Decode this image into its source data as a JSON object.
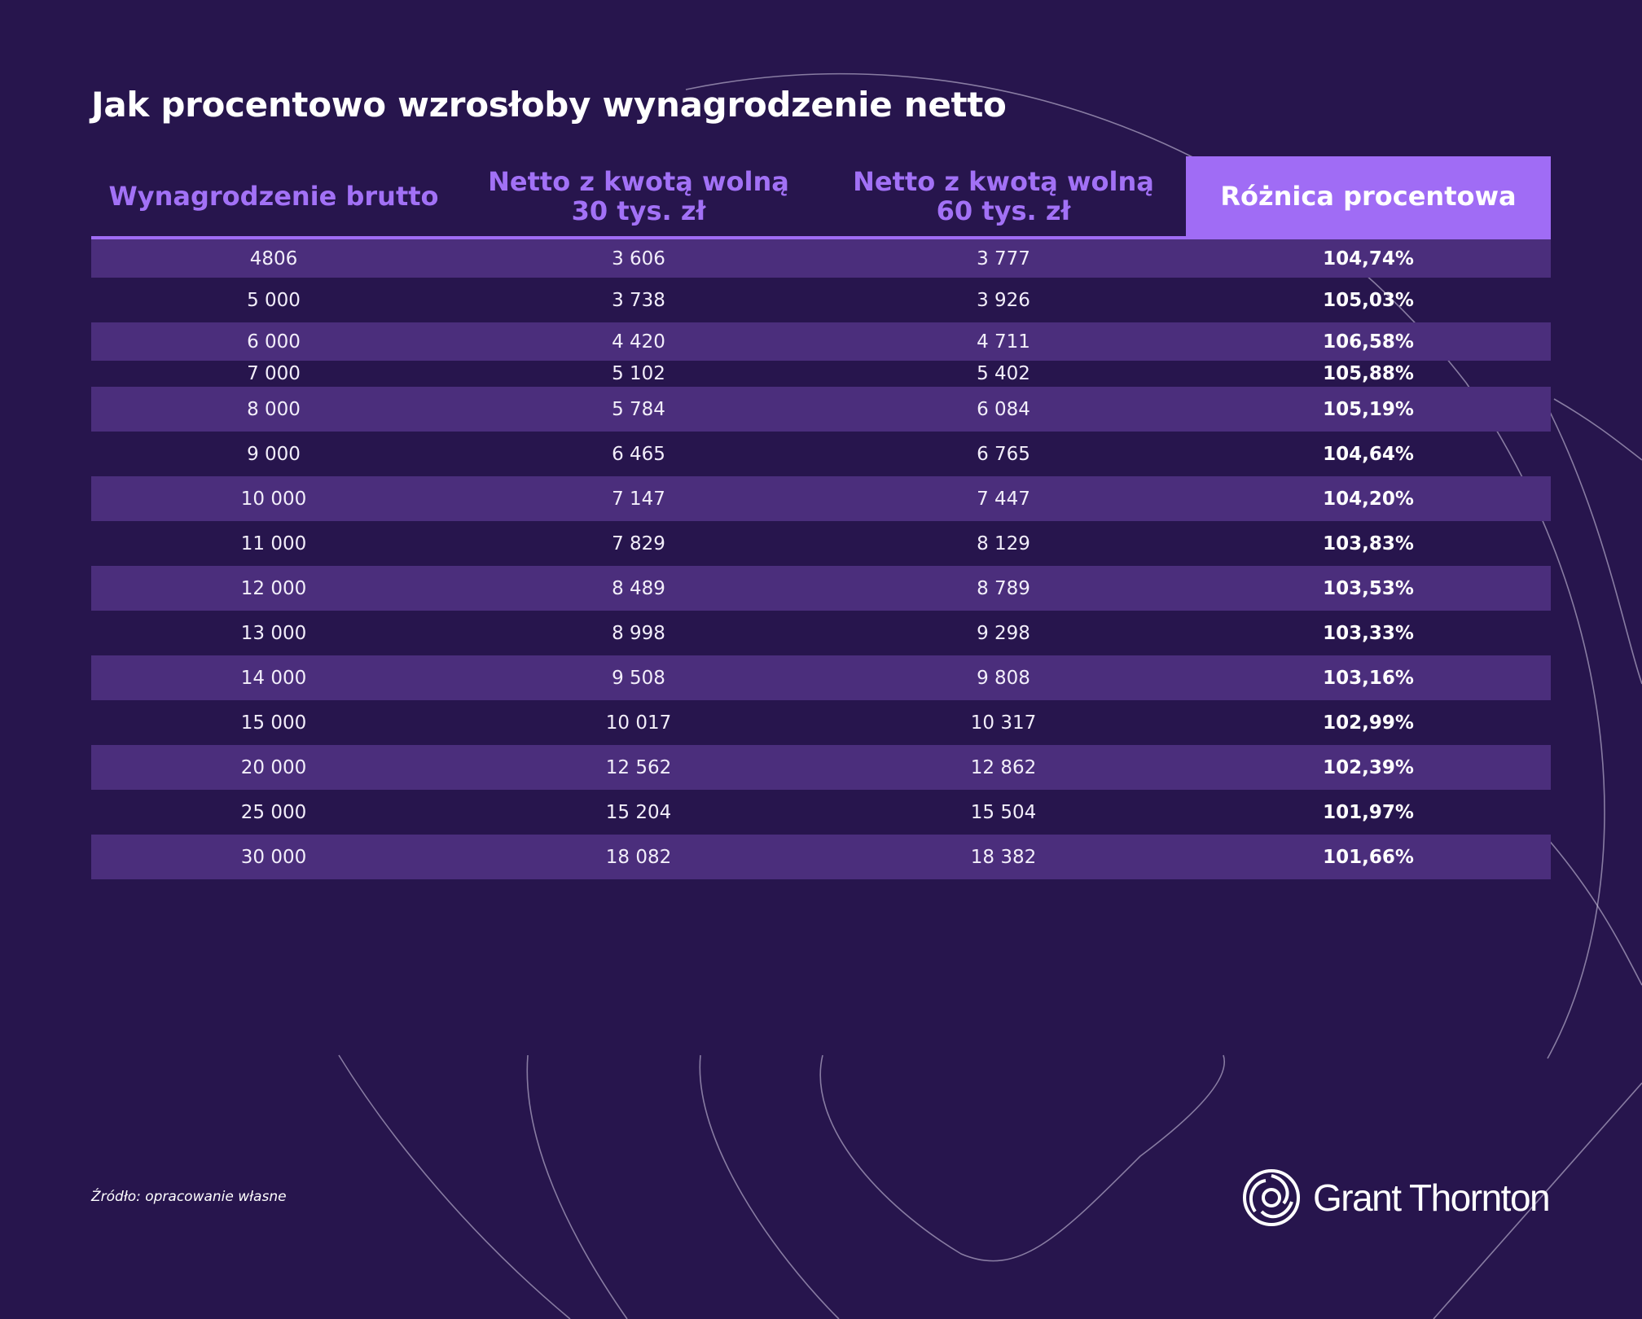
{
  "title": "Jak procentowo wzrosłoby wynagrodzenie netto",
  "source": "Źródło: opracowanie własne",
  "logo_text": "Grant Thornton",
  "colors": {
    "background": "#27154d",
    "accent": "#a06cf5",
    "row_alt": "#4b2e7c"
  },
  "chart_data": {
    "type": "table",
    "columns": [
      "Wynagrodzenie brutto",
      "Netto z kwotą wolną\n30 tys. zł",
      "Netto z kwotą wolną\n60 tys. zł",
      "Różnica procentowa"
    ],
    "highlighted_column": 3,
    "rows": [
      [
        "4806",
        "3 606",
        "3 777",
        "104,74%"
      ],
      [
        "5 000",
        "3 738",
        "3 926",
        "105,03%"
      ],
      [
        "6 000",
        "4 420",
        "4 711",
        "106,58%"
      ],
      [
        "7 000",
        "5 102",
        "5 402",
        "105,88%"
      ],
      [
        "8 000",
        "5 784",
        "6 084",
        "105,19%"
      ],
      [
        "9 000",
        "6 465",
        "6 765",
        "104,64%"
      ],
      [
        "10 000",
        "7 147",
        "7 447",
        "104,20%"
      ],
      [
        "11 000",
        "7 829",
        "8 129",
        "103,83%"
      ],
      [
        "12 000",
        "8 489",
        "8 789",
        "103,53%"
      ],
      [
        "13 000",
        "8 998",
        "9 298",
        "103,33%"
      ],
      [
        "14 000",
        "9 508",
        "9 808",
        "103,16%"
      ],
      [
        "15 000",
        "10 017",
        "10 317",
        "102,99%"
      ],
      [
        "20 000",
        "12 562",
        "12 862",
        "102,39%"
      ],
      [
        "25 000",
        "15 204",
        "15 504",
        "101,97%"
      ],
      [
        "30 000",
        "18 082",
        "18 382",
        "101,66%"
      ]
    ]
  }
}
